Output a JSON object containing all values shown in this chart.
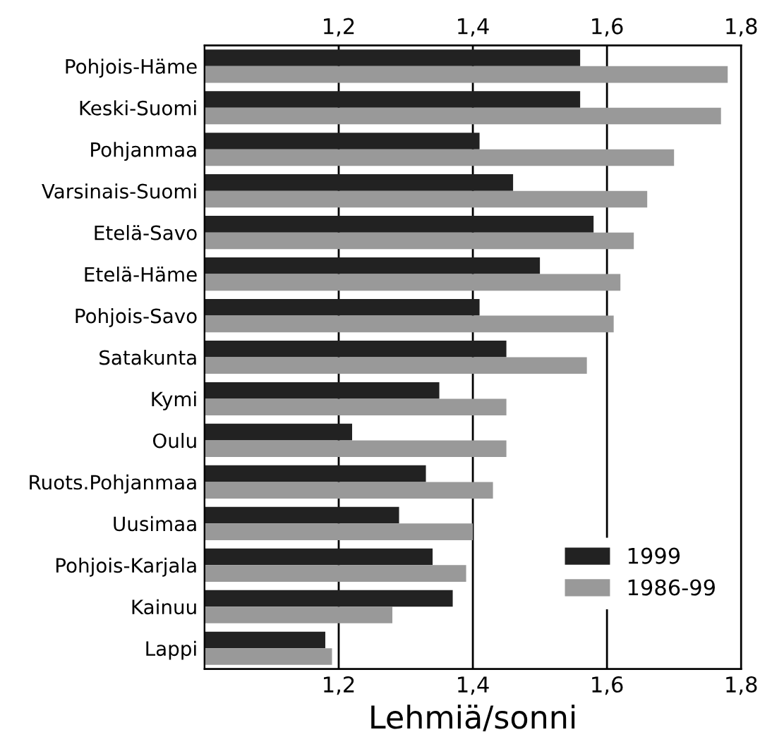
{
  "chart_data": {
    "type": "bar",
    "orientation": "horizontal",
    "xlabel": "Lehmiä/sonni",
    "categories": [
      "Pohjois-Häme",
      "Keski-Suomi",
      "Pohjanmaa",
      "Varsinais-Suomi",
      "Etelä-Savo",
      "Etelä-Häme",
      "Pohjois-Savo",
      "Satakunta",
      "Kymi",
      "Oulu",
      "Ruots.Pohjanmaa",
      "Uusimaa",
      "Pohjois-Karjala",
      "Kainuu",
      "Lappi"
    ],
    "series": [
      {
        "name": "1999",
        "color": "#222222",
        "values": [
          1.56,
          1.56,
          1.41,
          1.46,
          1.58,
          1.5,
          1.41,
          1.45,
          1.35,
          1.22,
          1.33,
          1.29,
          1.34,
          1.37,
          1.18
        ]
      },
      {
        "name": "1986-99",
        "color": "#999999",
        "values": [
          1.78,
          1.77,
          1.7,
          1.66,
          1.64,
          1.62,
          1.61,
          1.57,
          1.45,
          1.45,
          1.43,
          1.4,
          1.39,
          1.28,
          1.19
        ]
      }
    ],
    "xlim": [
      1.0,
      1.8
    ],
    "xticks": [
      {
        "value": 1.2,
        "label": "1,2"
      },
      {
        "value": 1.4,
        "label": "1,4"
      },
      {
        "value": 1.6,
        "label": "1,6"
      },
      {
        "value": 1.8,
        "label": "1,8"
      }
    ],
    "x2lim": [
      1.0,
      1.8
    ],
    "x2ticks": [
      {
        "value": 1.2,
        "label": "1,2"
      },
      {
        "value": 1.4,
        "label": "1,4"
      },
      {
        "value": 1.6,
        "label": "1,6"
      },
      {
        "value": 1.8,
        "label": "1,8"
      }
    ],
    "grid": "x",
    "legend": "bottom right"
  }
}
